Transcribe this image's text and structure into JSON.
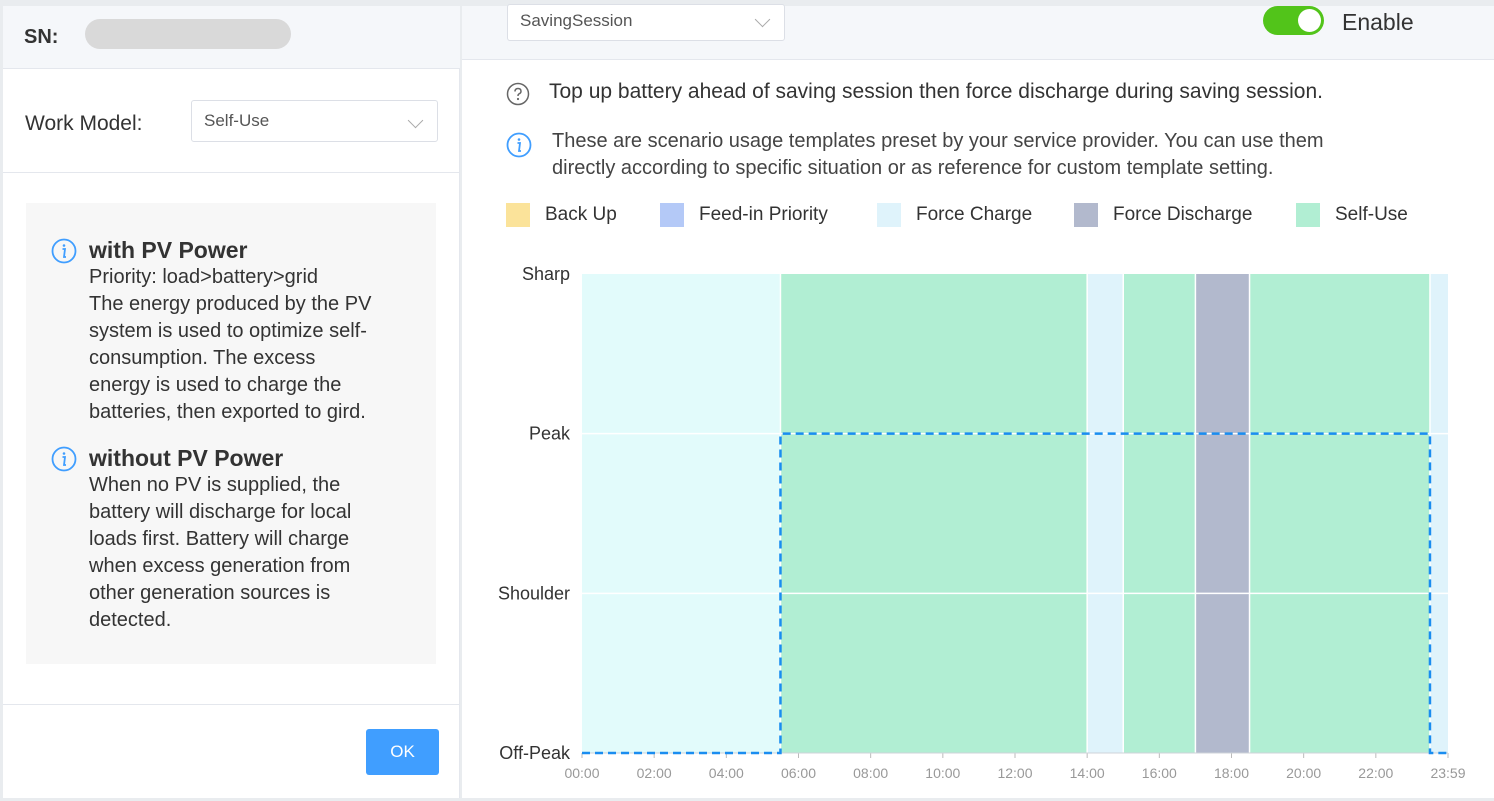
{
  "left": {
    "sn_label": "SN:",
    "work_model_label": "Work Model:",
    "work_model_value": "Self-Use",
    "sections": [
      {
        "title": "with PV Power",
        "lines": [
          "Priority: load>battery>grid",
          "The energy produced by the PV",
          "system is used to optimize self-",
          "consumption. The excess",
          "energy is used to charge the",
          "batteries, then exported to gird."
        ]
      },
      {
        "title": "without PV Power",
        "lines": [
          "When no PV is supplied, the",
          "battery will discharge for local",
          "loads first. Battery will charge",
          "when excess generation from",
          "other generation sources is",
          "detected."
        ]
      }
    ],
    "ok_label": "OK"
  },
  "right": {
    "template_value": "SavingSession",
    "enable_label": "Enable",
    "enabled": true,
    "help_text": "Top up battery ahead of saving session then force discharge during saving session.",
    "info_lines": [
      "These are scenario usage templates preset by your service provider. You can use them",
      "directly according to specific situation or as reference for custom template setting."
    ]
  },
  "chart_data": {
    "type": "timeline",
    "legend": [
      {
        "name": "Back Up",
        "color": "#fbe39a"
      },
      {
        "name": "Feed-in Priority",
        "color": "#b4c9f7"
      },
      {
        "name": "Force Charge",
        "color": "#dff3fb"
      },
      {
        "name": "Force Discharge",
        "color": "#b2b9cd"
      },
      {
        "name": "Self-Use",
        "color": "#b1eed3"
      }
    ],
    "y_categories": [
      "Off-Peak",
      "Shoulder",
      "Peak",
      "Sharp"
    ],
    "x_ticks": [
      "00:00",
      "02:00",
      "04:00",
      "06:00",
      "08:00",
      "10:00",
      "12:00",
      "14:00",
      "16:00",
      "18:00",
      "20:00",
      "22:00",
      "23:59"
    ],
    "x_range_hours": [
      0,
      24
    ],
    "segments": [
      {
        "start": 0,
        "end": 5.5,
        "mode": "Force Charge",
        "color": "#e2fbfb"
      },
      {
        "start": 5.5,
        "end": 14.0,
        "mode": "Self-Use",
        "color": "#b1eed3"
      },
      {
        "start": 14.0,
        "end": 15.0,
        "mode": "Force Charge",
        "color": "#dff3fb"
      },
      {
        "start": 15.0,
        "end": 17.0,
        "mode": "Self-Use",
        "color": "#b1eed3"
      },
      {
        "start": 17.0,
        "end": 18.5,
        "mode": "Force Discharge",
        "color": "#b2b9cd"
      },
      {
        "start": 18.5,
        "end": 23.5,
        "mode": "Self-Use",
        "color": "#b1eed3"
      },
      {
        "start": 23.5,
        "end": 24.0,
        "mode": "Force Charge",
        "color": "#dff3fb"
      }
    ],
    "tariff_line": [
      {
        "start": 0,
        "end": 5.5,
        "level": "Off-Peak"
      },
      {
        "start": 5.5,
        "end": 23.5,
        "level": "Peak"
      },
      {
        "start": 23.5,
        "end": 24.0,
        "level": "Off-Peak"
      }
    ]
  }
}
